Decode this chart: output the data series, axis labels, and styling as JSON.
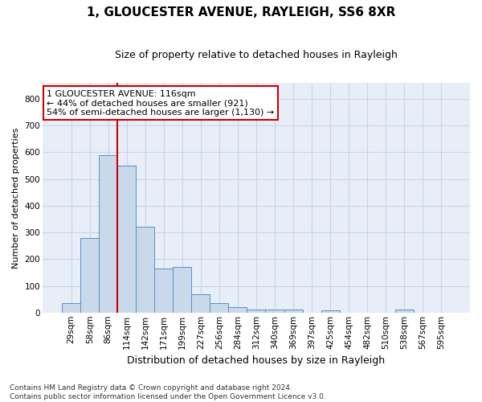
{
  "title": "1, GLOUCESTER AVENUE, RAYLEIGH, SS6 8XR",
  "subtitle": "Size of property relative to detached houses in Rayleigh",
  "xlabel": "Distribution of detached houses by size in Rayleigh",
  "ylabel": "Number of detached properties",
  "bar_labels": [
    "29sqm",
    "58sqm",
    "86sqm",
    "114sqm",
    "142sqm",
    "171sqm",
    "199sqm",
    "227sqm",
    "256sqm",
    "284sqm",
    "312sqm",
    "340sqm",
    "369sqm",
    "397sqm",
    "425sqm",
    "454sqm",
    "482sqm",
    "510sqm",
    "538sqm",
    "567sqm",
    "595sqm"
  ],
  "bar_values": [
    35,
    280,
    590,
    550,
    320,
    165,
    170,
    68,
    35,
    20,
    12,
    10,
    10,
    0,
    8,
    0,
    0,
    0,
    10,
    0,
    0
  ],
  "bar_color": "#c9d9ec",
  "bar_edgecolor": "#5a8fc3",
  "vline_color": "#cc0000",
  "vline_x_index": 3,
  "annotation_text": "1 GLOUCESTER AVENUE: 116sqm\n← 44% of detached houses are smaller (921)\n54% of semi-detached houses are larger (1,130) →",
  "annotation_box_facecolor": "#ffffff",
  "annotation_box_edgecolor": "#cc0000",
  "ylim": [
    0,
    860
  ],
  "yticks": [
    0,
    100,
    200,
    300,
    400,
    500,
    600,
    700,
    800
  ],
  "footnote": "Contains HM Land Registry data © Crown copyright and database right 2024.\nContains public sector information licensed under the Open Government Licence v3.0.",
  "grid_color": "#c8d4e8",
  "bg_color": "#e8eef7",
  "title_fontsize": 11,
  "subtitle_fontsize": 9,
  "xlabel_fontsize": 9,
  "ylabel_fontsize": 8,
  "tick_fontsize": 7.5,
  "annotation_fontsize": 8,
  "footnote_fontsize": 6.5
}
